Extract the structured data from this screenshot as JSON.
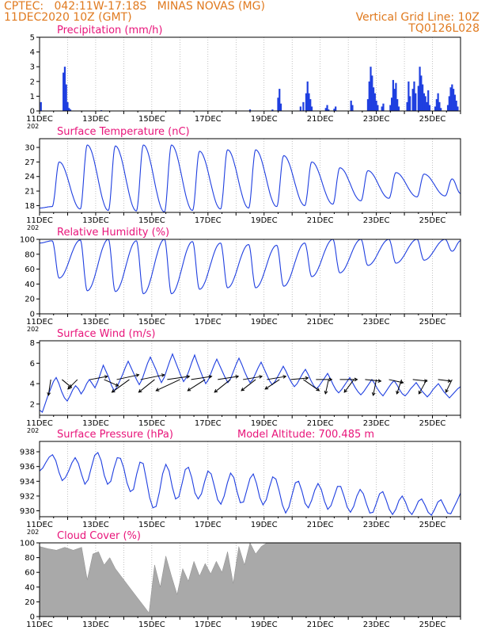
{
  "header": {
    "line1_left": "CPTEC:   042:11W-17:18S   MINAS NOVAS (MG)",
    "line2_left": "11DEC2020 10Z (GMT)",
    "line1_right": "Vertical Grid Line: 10Z",
    "line2_right": "TQ0126L028"
  },
  "colors": {
    "header": "#e07a1f",
    "title": "#e8147a",
    "line": "#1f3fe0",
    "bar": "#1f3fe0",
    "cloud": "#a9a9a9",
    "arrow": "#000000"
  },
  "x_axis": {
    "start_day": 11,
    "end_day": 26,
    "ticks": [
      {
        "day": 11,
        "label": "11DEC"
      },
      {
        "day": 13,
        "label": "13DEC"
      },
      {
        "day": 15,
        "label": "15DEC"
      },
      {
        "day": 17,
        "label": "17DEC"
      },
      {
        "day": 19,
        "label": "19DEC"
      },
      {
        "day": 21,
        "label": "21DEC"
      },
      {
        "day": 23,
        "label": "23DEC"
      },
      {
        "day": 25,
        "label": "25DEC"
      }
    ],
    "year_fragment": "202"
  },
  "chart_data": [
    {
      "type": "bar",
      "title": "Precipitation (mm/h)",
      "ylim": [
        0,
        5
      ],
      "yticks": [
        0,
        1,
        2,
        3,
        4,
        5
      ],
      "x": [
        11.05,
        11.85,
        11.9,
        11.95,
        12.0,
        12.05,
        12.1,
        13.2,
        16.0,
        18.5,
        19.3,
        19.5,
        19.55,
        19.6,
        20.3,
        20.4,
        20.5,
        20.55,
        20.6,
        20.65,
        20.7,
        21.2,
        21.25,
        21.3,
        21.5,
        21.55,
        22.1,
        22.15,
        22.7,
        22.75,
        22.8,
        22.85,
        22.9,
        22.95,
        23.0,
        23.05,
        23.2,
        23.25,
        23.5,
        23.55,
        23.6,
        23.65,
        23.7,
        23.75,
        23.8,
        24.1,
        24.15,
        24.2,
        24.3,
        24.35,
        24.4,
        24.5,
        24.55,
        24.6,
        24.65,
        24.7,
        24.75,
        24.8,
        24.85,
        24.9,
        25.1,
        25.15,
        25.2,
        25.25,
        25.3,
        25.55,
        25.6,
        25.65,
        25.7,
        25.75,
        25.8,
        25.85,
        25.9
      ],
      "values": [
        0.6,
        2.6,
        3.0,
        1.8,
        0.6,
        0.2,
        0.1,
        0.05,
        0.05,
        0.1,
        0.1,
        0.9,
        1.5,
        0.5,
        0.3,
        0.6,
        1.2,
        2.0,
        1.2,
        0.8,
        0.3,
        0.2,
        0.4,
        0.1,
        0.15,
        0.3,
        0.7,
        0.4,
        0.8,
        2.0,
        3.0,
        2.4,
        1.6,
        1.2,
        0.7,
        0.4,
        0.3,
        0.5,
        0.4,
        0.9,
        2.1,
        1.5,
        1.9,
        0.8,
        0.3,
        0.6,
        2.0,
        1.0,
        1.5,
        2.0,
        1.2,
        1.7,
        3.0,
        2.4,
        1.8,
        1.2,
        1.0,
        0.6,
        1.4,
        0.4,
        0.3,
        0.8,
        1.2,
        0.6,
        0.2,
        0.4,
        1.0,
        1.6,
        1.8,
        1.5,
        1.1,
        0.7,
        0.3
      ]
    },
    {
      "type": "line",
      "title": "Surface Temperature (nC)",
      "ylim": [
        16.6,
        31.8
      ],
      "yticks": [
        18,
        21,
        24,
        27,
        30
      ],
      "peak_times": [
        11.7,
        12.7,
        13.7,
        14.7,
        15.7,
        16.7,
        17.7,
        18.7,
        19.7,
        20.7,
        21.7,
        22.7,
        23.7,
        24.7,
        25.7
      ],
      "peaks": [
        27.0,
        30.5,
        30.3,
        30.5,
        30.5,
        29.2,
        29.5,
        29.5,
        28.3,
        27.0,
        25.8,
        25.2,
        24.8,
        24.5,
        23.5
      ],
      "trough_times": [
        11.45,
        12.45,
        13.45,
        14.45,
        15.45,
        16.45,
        17.45,
        18.45,
        19.45,
        20.45,
        21.45,
        22.45,
        23.45,
        24.45,
        25.45
      ],
      "troughs": [
        17.8,
        17.3,
        17.0,
        16.9,
        16.7,
        17.0,
        17.3,
        17.5,
        17.8,
        18.0,
        18.3,
        19.0,
        19.5,
        19.8,
        20.0
      ],
      "start_value": 17.5,
      "end_value": 20.5
    },
    {
      "type": "line",
      "title": "Relative Humidity (%)",
      "ylim": [
        0,
        100
      ],
      "yticks": [
        0,
        20,
        40,
        60,
        80,
        100
      ],
      "peak_times": [
        11.45,
        12.45,
        13.45,
        14.45,
        15.45,
        16.45,
        17.45,
        18.45,
        19.45,
        20.45,
        21.45,
        22.45,
        23.45,
        24.45,
        25.45
      ],
      "peaks": [
        98,
        99,
        100,
        98,
        100,
        97,
        95,
        93,
        92,
        95,
        100,
        100,
        100,
        100,
        100
      ],
      "trough_times": [
        11.7,
        12.7,
        13.7,
        14.7,
        15.7,
        16.7,
        17.7,
        18.7,
        19.7,
        20.7,
        21.7,
        22.7,
        23.7,
        24.7,
        25.7
      ],
      "troughs": [
        48,
        31,
        30,
        27,
        27,
        33,
        35,
        35,
        37,
        50,
        55,
        65,
        68,
        72,
        84
      ],
      "start_value": 95,
      "end_value": 98
    },
    {
      "type": "line",
      "title": "Surface Wind (m/s)",
      "ylim": [
        0.9,
        8.2
      ],
      "yticks": [
        2,
        4,
        6,
        8
      ],
      "values": [
        1.4,
        1.2,
        2.0,
        2.8,
        3.5,
        4.2,
        4.6,
        4.0,
        3.2,
        2.6,
        2.3,
        2.8,
        3.4,
        3.8,
        3.5,
        3.0,
        3.4,
        4.0,
        4.4,
        4.0,
        3.6,
        4.2,
        5.0,
        5.8,
        5.2,
        4.6,
        3.8,
        3.3,
        3.7,
        4.3,
        4.9,
        5.6,
        6.2,
        5.6,
        5.0,
        4.4,
        3.9,
        4.4,
        5.2,
        6.0,
        6.6,
        6.0,
        5.4,
        4.7,
        4.1,
        4.6,
        5.4,
        6.2,
        6.9,
        6.2,
        5.5,
        4.8,
        4.2,
        4.6,
        5.3,
        6.1,
        6.8,
        6.0,
        5.3,
        4.6,
        4.0,
        4.4,
        5.1,
        5.8,
        6.4,
        5.8,
        5.2,
        4.6,
        4.1,
        4.5,
        5.2,
        5.9,
        6.5,
        5.9,
        5.2,
        4.6,
        4.1,
        4.4,
        5.0,
        5.6,
        6.1,
        5.5,
        4.9,
        4.3,
        3.9,
        4.2,
        4.7,
        5.2,
        5.7,
        5.2,
        4.6,
        4.1,
        3.7,
        4.0,
        4.5,
        5.0,
        5.4,
        4.9,
        4.3,
        3.8,
        3.5,
        3.8,
        4.2,
        4.6,
        5.0,
        4.5,
        3.9,
        3.4,
        3.1,
        3.4,
        3.8,
        4.2,
        4.6,
        4.1,
        3.6,
        3.2,
        2.9,
        3.2,
        3.6,
        4.0,
        4.4,
        4.0,
        3.5,
        3.1,
        2.8,
        3.2,
        3.6,
        4.0,
        4.3,
        3.9,
        3.4,
        3.0,
        2.8,
        3.1,
        3.5,
        3.8,
        4.1,
        3.7,
        3.3,
        3.0,
        2.7,
        3.0,
        3.4,
        3.7,
        4.0,
        3.6,
        3.2,
        2.9,
        2.6,
        2.9,
        3.2,
        3.5,
        3.7
      ],
      "arrows": [
        {
          "day": 11.4,
          "dx": -3,
          "dy": 20
        },
        {
          "day": 11.8,
          "dx": 12,
          "dy": 10
        },
        {
          "day": 12.35,
          "dx": -12,
          "dy": 12
        },
        {
          "day": 12.8,
          "dx": 22,
          "dy": -4
        },
        {
          "day": 13.3,
          "dx": 18,
          "dy": 8
        },
        {
          "day": 13.75,
          "dx": 28,
          "dy": -6
        },
        {
          "day": 14.2,
          "dx": -22,
          "dy": 16
        },
        {
          "day": 14.6,
          "dx": 30,
          "dy": -6
        },
        {
          "day": 15.1,
          "dx": -20,
          "dy": 16
        },
        {
          "day": 15.55,
          "dx": 28,
          "dy": -4
        },
        {
          "day": 16.0,
          "dx": -30,
          "dy": 14
        },
        {
          "day": 16.4,
          "dx": 26,
          "dy": -4
        },
        {
          "day": 16.9,
          "dx": -22,
          "dy": 14
        },
        {
          "day": 17.35,
          "dx": 26,
          "dy": -4
        },
        {
          "day": 17.8,
          "dx": -20,
          "dy": 16
        },
        {
          "day": 18.25,
          "dx": 24,
          "dy": -4
        },
        {
          "day": 18.7,
          "dx": -18,
          "dy": 14
        },
        {
          "day": 19.1,
          "dx": 24,
          "dy": -4
        },
        {
          "day": 19.55,
          "dx": -18,
          "dy": 12
        },
        {
          "day": 19.95,
          "dx": 22,
          "dy": -2
        },
        {
          "day": 20.4,
          "dx": 20,
          "dy": 14
        },
        {
          "day": 20.85,
          "dx": 20,
          "dy": 0
        },
        {
          "day": 21.3,
          "dx": -4,
          "dy": 18
        },
        {
          "day": 21.7,
          "dx": 22,
          "dy": 0
        },
        {
          "day": 22.2,
          "dx": -12,
          "dy": 16
        },
        {
          "day": 22.6,
          "dx": 20,
          "dy": 2
        },
        {
          "day": 23.0,
          "dx": -4,
          "dy": 20
        },
        {
          "day": 23.45,
          "dx": 18,
          "dy": 4
        },
        {
          "day": 23.9,
          "dx": -6,
          "dy": 18
        },
        {
          "day": 24.3,
          "dx": 18,
          "dy": 2
        },
        {
          "day": 24.8,
          "dx": -10,
          "dy": 18
        },
        {
          "day": 25.2,
          "dx": 16,
          "dy": 2
        },
        {
          "day": 25.7,
          "dx": -8,
          "dy": 16
        }
      ]
    },
    {
      "type": "line",
      "title": "Surface Pressure (hPa)",
      "subtitle": "Model Altitude: 700.485 m",
      "ylim": [
        929.2,
        939.4
      ],
      "yticks": [
        930,
        932,
        934,
        936,
        938
      ],
      "values": [
        935.4,
        935.8,
        936.6,
        937.3,
        937.6,
        936.8,
        935.2,
        934.1,
        934.5,
        935.4,
        936.5,
        937.2,
        936.4,
        934.9,
        933.6,
        934.2,
        935.9,
        937.5,
        937.9,
        936.8,
        934.8,
        933.6,
        934.0,
        935.8,
        937.2,
        937.1,
        935.8,
        933.8,
        932.6,
        932.9,
        935.0,
        936.6,
        936.4,
        934.2,
        931.8,
        930.4,
        930.6,
        932.5,
        935.0,
        936.3,
        935.4,
        933.2,
        931.6,
        931.9,
        933.7,
        935.6,
        935.9,
        934.5,
        932.4,
        931.6,
        932.3,
        934.0,
        935.4,
        935.0,
        933.3,
        931.5,
        930.9,
        932.0,
        933.8,
        935.1,
        934.5,
        932.6,
        931.1,
        931.2,
        932.8,
        934.4,
        935.0,
        933.7,
        931.8,
        930.8,
        931.5,
        933.2,
        934.6,
        934.3,
        932.7,
        930.8,
        929.7,
        930.5,
        932.2,
        933.8,
        934.0,
        932.7,
        931.0,
        930.4,
        931.4,
        932.8,
        933.7,
        932.9,
        931.3,
        930.2,
        930.7,
        932.0,
        933.3,
        933.3,
        932.0,
        930.5,
        929.8,
        930.6,
        932.0,
        932.9,
        932.3,
        930.9,
        929.7,
        929.8,
        931.0,
        932.3,
        932.6,
        931.5,
        930.2,
        929.5,
        930.2,
        931.4,
        932.0,
        931.2,
        930.0,
        929.5,
        930.3,
        931.3,
        931.6,
        930.8,
        929.8,
        929.4,
        930.2,
        931.2,
        931.5,
        930.6,
        929.7,
        929.6,
        930.5,
        931.4,
        932.4
      ]
    },
    {
      "type": "area",
      "title": "Cloud Cover (%)",
      "ylim": [
        0,
        100
      ],
      "yticks": [
        0,
        20,
        40,
        60,
        80,
        100
      ],
      "x": [
        11.0,
        11.3,
        11.6,
        11.9,
        12.2,
        12.5,
        12.7,
        12.9,
        13.1,
        13.3,
        13.5,
        13.7,
        13.9,
        14.1,
        14.3,
        14.5,
        14.7,
        14.9,
        15.1,
        15.3,
        15.5,
        15.7,
        15.9,
        16.1,
        16.3,
        16.5,
        16.7,
        16.9,
        17.1,
        17.3,
        17.5,
        17.7,
        17.9,
        18.1,
        18.3,
        18.5,
        18.7,
        18.9,
        19.1,
        19.3,
        19.6,
        20.0,
        20.5,
        21.0,
        21.5,
        22.0,
        22.5,
        23.0,
        23.5,
        24.0,
        24.5,
        25.0,
        25.5,
        26.0
      ],
      "values": [
        95,
        92,
        90,
        94,
        90,
        94,
        50,
        85,
        88,
        70,
        80,
        65,
        55,
        45,
        35,
        25,
        15,
        5,
        70,
        40,
        82,
        55,
        30,
        65,
        48,
        75,
        55,
        72,
        58,
        75,
        60,
        88,
        45,
        95,
        70,
        100,
        85,
        95,
        100,
        100,
        100,
        100,
        100,
        100,
        100,
        100,
        100,
        100,
        100,
        100,
        100,
        100,
        100,
        100
      ]
    }
  ]
}
